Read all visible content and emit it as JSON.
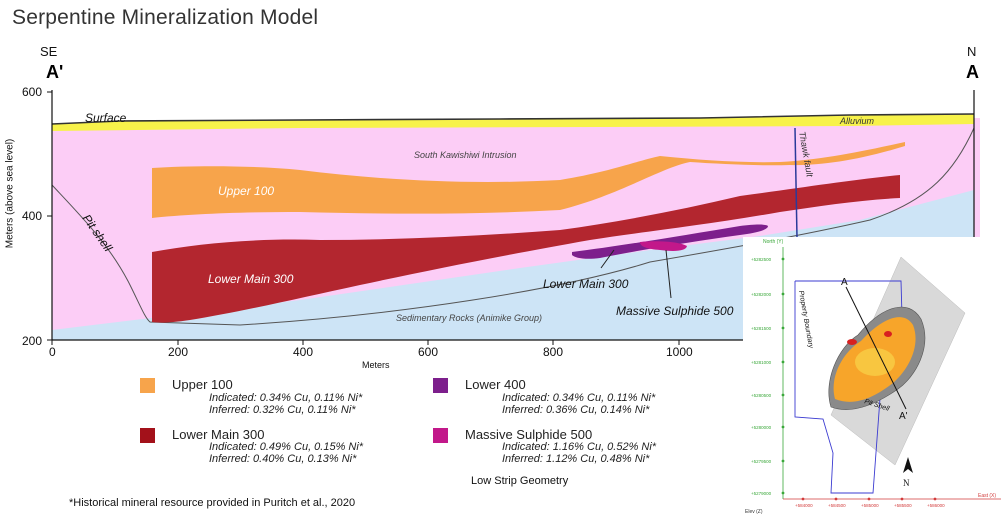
{
  "title": "Serpentine Mineralization Model",
  "direction_left": "SE",
  "direction_right": "N",
  "section_left": "A'",
  "section_right": "A",
  "y_axis_label": "Meters (above sea level)",
  "x_axis_label": "Meters",
  "y_ticks": [
    "600",
    "400",
    "200"
  ],
  "x_ticks": [
    "0",
    "200",
    "400",
    "600",
    "800",
    "1000"
  ],
  "labels": {
    "surface": "Surface",
    "alluvium": "Alluvium",
    "intrusion": "South Kawishiwi Intrusion",
    "fault": "Thawk fault",
    "upper": "Upper 100",
    "pit_shell": "Pit shell",
    "lower_main": "Lower Main 300",
    "lower_main_callout": "Lower Main 300",
    "massive_callout": "Massive Sulphide 500",
    "sedimentary": "Sedimentary Rocks (Animike Group)"
  },
  "colors": {
    "alluvium": "#f7f24a",
    "intrusion": "#fccdf6",
    "sediment": "#cde4f6",
    "upper": "#f7a44b",
    "lower_main": "#b3262f",
    "lower400": "#7d1f8c",
    "massive": "#c2188a"
  },
  "legend": [
    {
      "name": "Upper 100",
      "color": "#f7a44b",
      "indicated": "Indicated: 0.34% Cu, 0.11% Ni*",
      "inferred": "Inferred: 0.32% Cu, 0.11% Ni*"
    },
    {
      "name": "Lower 400",
      "color": "#7d1f8c",
      "indicated": "Indicated: 0.34% Cu, 0.11% Ni*",
      "inferred": "Inferred: 0.36% Cu, 0.14% Ni*"
    },
    {
      "name": "Lower Main 300",
      "color": "#a3111a",
      "indicated": "Indicated: 0.49% Cu, 0.15% Ni*",
      "inferred": "Inferred: 0.40% Cu, 0.13% Ni*"
    },
    {
      "name": "Massive Sulphide 500",
      "color": "#c2188a",
      "indicated": "Indicated: 1.16% Cu, 0.52% Ni*",
      "inferred": "Inferred: 1.12% Cu, 0.48% Ni*"
    }
  ],
  "footnote": "*Historical mineral resource provided in Puritch et al., 2020",
  "geometry_label": "Low Strip Geometry",
  "inset": {
    "north_label": "North (Y)",
    "north_ticks": [
      "+5282500",
      "+5282000",
      "+5281500",
      "+5281000",
      "+5280500",
      "+5280000",
      "+5279500",
      "+5279000"
    ],
    "east_label": "East (X)",
    "east_ticks": [
      "+584000",
      "+584500",
      "+585000",
      "+585500",
      "+586000"
    ],
    "elev_label": "Elev (Z)",
    "property_boundary": "Property Boundary",
    "pit_shell": "Pit Shell",
    "section_a": "A",
    "section_a_prime": "A'",
    "north_arrow": "N"
  }
}
